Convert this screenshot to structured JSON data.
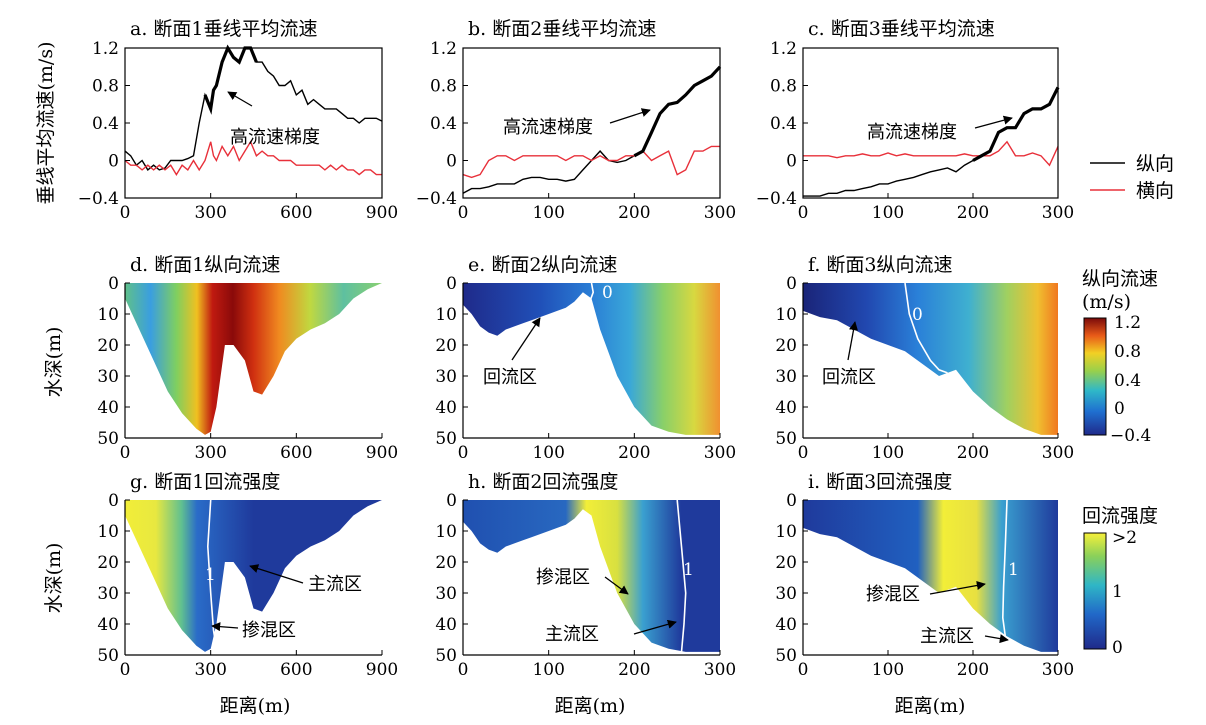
{
  "line_panels": [
    {
      "id": "a",
      "title": "a. 断面1垂线平均流速",
      "xticks": [
        0,
        300,
        600,
        900
      ],
      "annotation": "高流速梯度"
    },
    {
      "id": "b",
      "title": "b. 断面2垂线平均流速",
      "xticks": [
        0,
        100,
        200,
        300
      ],
      "annotation": "高流速梯度"
    },
    {
      "id": "c",
      "title": "c. 断面3垂线平均流速",
      "xticks": [
        0,
        100,
        200,
        300
      ],
      "annotation": "高流速梯度"
    }
  ],
  "yticks_line": [
    "1.2",
    "0.8",
    "0.4",
    "0",
    "−0.4"
  ],
  "ylabel_line": "垂线平均流速(m/s)",
  "legend": {
    "items": [
      {
        "label": "纵向",
        "color": "#000000"
      },
      {
        "label": "横向",
        "color": "#e8303a"
      }
    ]
  },
  "section_panels": [
    {
      "id": "d",
      "title": "d. 断面1纵向流速",
      "xticks": [
        0,
        300,
        600,
        900
      ],
      "annotations": []
    },
    {
      "id": "e",
      "title": "e. 断面2纵向流速",
      "xticks": [
        0,
        100,
        200,
        300
      ],
      "annotations": [
        "回流区"
      ],
      "contour_label": "0"
    },
    {
      "id": "f",
      "title": "f. 断面3纵向流速",
      "xticks": [
        0,
        100,
        200,
        300
      ],
      "annotations": [
        "回流区"
      ],
      "contour_label": "0"
    },
    {
      "id": "g",
      "title": "g. 断面1回流强度",
      "xticks": [
        0,
        300,
        600,
        900
      ],
      "annotations": [
        "主流区",
        "掺混区"
      ],
      "contour_label": "1"
    },
    {
      "id": "h",
      "title": "h. 断面2回流强度",
      "xticks": [
        0,
        100,
        200,
        300
      ],
      "annotations": [
        "掺混区",
        "主流区"
      ],
      "contour_label": "1"
    },
    {
      "id": "i",
      "title": "i. 断面3回流强度",
      "xticks": [
        0,
        100,
        200,
        300
      ],
      "annotations": [
        "掺混区",
        "主流区"
      ],
      "contour_label": "1"
    }
  ],
  "yticks_depth": [
    "0",
    "10",
    "20",
    "30",
    "40",
    "50"
  ],
  "ylabel_depth": "水深(m)",
  "xlabel": "距离(m)",
  "colorbar1": {
    "title_line1": "纵向流速",
    "title_line2": "(m/s)",
    "ticks": [
      "1.2",
      "0.8",
      "0.4",
      "0",
      "−0.4"
    ]
  },
  "colorbar2": {
    "title": "回流强度",
    "ticks": [
      ">2",
      "1",
      "0"
    ]
  },
  "chart_data": [
    {
      "type": "line",
      "panel": "a",
      "xlim": [
        0,
        900
      ],
      "ylim": [
        -0.4,
        1.2
      ],
      "series": [
        {
          "name": "纵向",
          "x": [
            0,
            20,
            40,
            60,
            80,
            100,
            120,
            140,
            160,
            180,
            200,
            220,
            240,
            260,
            280,
            300,
            310,
            320,
            340,
            360,
            380,
            400,
            420,
            440,
            460,
            480,
            500,
            520,
            540,
            560,
            580,
            600,
            620,
            640,
            660,
            680,
            700,
            720,
            740,
            760,
            780,
            800,
            820,
            840,
            860,
            880,
            900
          ],
          "values": [
            0.1,
            0.05,
            -0.05,
            0.0,
            -0.1,
            -0.05,
            -0.1,
            -0.08,
            0.0,
            0.0,
            0.0,
            0.02,
            0.05,
            0.4,
            0.7,
            0.55,
            0.75,
            0.8,
            1.05,
            1.2,
            1.1,
            1.05,
            1.2,
            1.2,
            1.05,
            1.05,
            0.95,
            0.9,
            0.8,
            0.8,
            0.85,
            0.7,
            0.75,
            0.6,
            0.65,
            0.6,
            0.55,
            0.55,
            0.55,
            0.5,
            0.45,
            0.45,
            0.4,
            0.45,
            0.45,
            0.45,
            0.42
          ]
        },
        {
          "name": "横向",
          "x": [
            0,
            20,
            40,
            60,
            80,
            100,
            120,
            140,
            160,
            180,
            200,
            220,
            240,
            260,
            280,
            300,
            310,
            320,
            340,
            360,
            380,
            400,
            420,
            440,
            460,
            480,
            500,
            520,
            540,
            560,
            580,
            600,
            620,
            640,
            660,
            680,
            700,
            720,
            740,
            760,
            780,
            800,
            820,
            840,
            860,
            880,
            900
          ],
          "values": [
            0.0,
            -0.05,
            -0.05,
            -0.1,
            -0.05,
            -0.1,
            -0.05,
            -0.1,
            -0.05,
            -0.15,
            -0.05,
            -0.1,
            0.0,
            -0.1,
            0.0,
            0.2,
            0.05,
            0.0,
            0.15,
            0.05,
            0.15,
            0.0,
            0.1,
            0.2,
            0.05,
            0.1,
            0.05,
            0.05,
            0.0,
            0.0,
            0.0,
            -0.05,
            -0.05,
            -0.05,
            -0.05,
            -0.05,
            -0.1,
            -0.05,
            -0.1,
            -0.05,
            -0.1,
            -0.1,
            -0.15,
            -0.1,
            -0.1,
            -0.15,
            -0.15
          ]
        }
      ]
    },
    {
      "type": "line",
      "panel": "b",
      "xlim": [
        0,
        300
      ],
      "ylim": [
        -0.4,
        1.2
      ],
      "series": [
        {
          "name": "纵向",
          "x": [
            0,
            10,
            20,
            30,
            40,
            50,
            60,
            70,
            80,
            90,
            100,
            110,
            120,
            130,
            140,
            150,
            160,
            170,
            180,
            190,
            200,
            210,
            220,
            230,
            240,
            250,
            260,
            270,
            280,
            290,
            300
          ],
          "values": [
            -0.35,
            -0.3,
            -0.3,
            -0.28,
            -0.25,
            -0.25,
            -0.25,
            -0.2,
            -0.18,
            -0.18,
            -0.2,
            -0.2,
            -0.22,
            -0.2,
            -0.1,
            0.0,
            0.1,
            0.0,
            -0.02,
            0.0,
            0.05,
            0.1,
            0.3,
            0.5,
            0.6,
            0.62,
            0.7,
            0.8,
            0.85,
            0.9,
            1.0
          ]
        },
        {
          "name": "横向",
          "x": [
            0,
            10,
            20,
            30,
            40,
            50,
            60,
            70,
            80,
            90,
            100,
            110,
            120,
            130,
            140,
            150,
            160,
            170,
            180,
            190,
            200,
            210,
            220,
            230,
            240,
            250,
            260,
            270,
            280,
            290,
            300
          ],
          "values": [
            -0.15,
            -0.18,
            -0.15,
            0.0,
            0.05,
            0.05,
            0.0,
            0.05,
            0.05,
            0.05,
            0.05,
            0.05,
            0.0,
            0.05,
            0.05,
            0.0,
            0.05,
            0.0,
            0.0,
            0.05,
            0.05,
            0.1,
            0.0,
            0.05,
            0.1,
            -0.15,
            -0.1,
            0.1,
            0.1,
            0.15,
            0.15
          ]
        }
      ]
    },
    {
      "type": "line",
      "panel": "c",
      "xlim": [
        0,
        300
      ],
      "ylim": [
        -0.4,
        1.2
      ],
      "series": [
        {
          "name": "纵向",
          "x": [
            0,
            10,
            20,
            30,
            40,
            50,
            60,
            70,
            80,
            90,
            100,
            110,
            120,
            130,
            140,
            150,
            160,
            170,
            180,
            190,
            200,
            210,
            220,
            230,
            240,
            250,
            260,
            270,
            280,
            290,
            300
          ],
          "values": [
            -0.38,
            -0.38,
            -0.38,
            -0.35,
            -0.35,
            -0.32,
            -0.32,
            -0.3,
            -0.28,
            -0.25,
            -0.25,
            -0.22,
            -0.2,
            -0.18,
            -0.15,
            -0.12,
            -0.1,
            -0.08,
            -0.12,
            -0.05,
            0.0,
            0.05,
            0.1,
            0.3,
            0.35,
            0.35,
            0.5,
            0.55,
            0.55,
            0.6,
            0.78
          ]
        },
        {
          "name": "横向",
          "x": [
            0,
            10,
            20,
            30,
            40,
            50,
            60,
            70,
            80,
            90,
            100,
            110,
            120,
            130,
            140,
            150,
            160,
            170,
            180,
            190,
            200,
            210,
            220,
            230,
            240,
            250,
            260,
            270,
            280,
            290,
            300
          ],
          "values": [
            0.05,
            0.05,
            0.05,
            0.05,
            0.03,
            0.05,
            0.05,
            0.07,
            0.05,
            0.05,
            0.08,
            0.05,
            0.07,
            0.05,
            0.05,
            0.05,
            0.05,
            0.05,
            0.05,
            0.07,
            0.05,
            0.05,
            0.05,
            0.1,
            0.2,
            0.05,
            0.05,
            0.08,
            0.05,
            -0.05,
            0.15
          ]
        }
      ]
    },
    {
      "type": "heatmap",
      "panel": "d",
      "xlim": [
        0,
        900
      ],
      "ylim": [
        50,
        0
      ],
      "bed": {
        "x": [
          0,
          50,
          100,
          150,
          200,
          250,
          280,
          300,
          320,
          350,
          380,
          420,
          450,
          480,
          520,
          560,
          600,
          650,
          700,
          750,
          800,
          850,
          900
        ],
        "depth": [
          5,
          15,
          25,
          35,
          42,
          47,
          49,
          48,
          40,
          20,
          20,
          25,
          35,
          36,
          30,
          22,
          18,
          15,
          13,
          10,
          5,
          2,
          0
        ]
      }
    },
    {
      "type": "heatmap",
      "panel": "e",
      "xlim": [
        0,
        300
      ],
      "ylim": [
        50,
        0
      ],
      "bed": {
        "x": [
          0,
          10,
          20,
          30,
          40,
          50,
          60,
          70,
          80,
          90,
          100,
          110,
          120,
          130,
          140,
          150,
          160,
          180,
          200,
          220,
          240,
          260,
          280,
          300
        ],
        "depth": [
          7,
          10,
          14,
          16,
          17,
          15,
          14,
          13,
          12,
          11,
          10,
          9,
          8,
          6,
          3,
          5,
          15,
          30,
          40,
          46,
          48,
          49,
          49,
          49
        ]
      }
    },
    {
      "type": "heatmap",
      "panel": "f",
      "xlim": [
        0,
        300
      ],
      "ylim": [
        50,
        0
      ],
      "bed": {
        "x": [
          0,
          20,
          40,
          60,
          80,
          100,
          120,
          140,
          160,
          180,
          200,
          220,
          240,
          260,
          280,
          300
        ],
        "depth": [
          9,
          11,
          12,
          15,
          18,
          20,
          22,
          26,
          30,
          28,
          35,
          40,
          44,
          47,
          49,
          49
        ]
      }
    },
    {
      "type": "heatmap",
      "panel": "g",
      "xlim": [
        0,
        900
      ],
      "ylim": [
        50,
        0
      ],
      "bed": {
        "x": [
          0,
          50,
          100,
          150,
          200,
          250,
          280,
          300,
          320,
          350,
          380,
          420,
          450,
          480,
          520,
          560,
          600,
          650,
          700,
          750,
          800,
          850,
          900
        ],
        "depth": [
          5,
          15,
          25,
          35,
          42,
          47,
          49,
          48,
          40,
          20,
          20,
          25,
          35,
          36,
          30,
          22,
          18,
          15,
          13,
          10,
          5,
          2,
          0
        ]
      }
    },
    {
      "type": "heatmap",
      "panel": "h",
      "xlim": [
        0,
        300
      ],
      "ylim": [
        50,
        0
      ],
      "bed": {
        "x": [
          0,
          10,
          20,
          30,
          40,
          50,
          60,
          70,
          80,
          90,
          100,
          110,
          120,
          130,
          140,
          150,
          160,
          180,
          200,
          220,
          240,
          260,
          280,
          300
        ],
        "depth": [
          7,
          10,
          14,
          16,
          17,
          15,
          14,
          13,
          12,
          11,
          10,
          9,
          8,
          6,
          3,
          5,
          15,
          30,
          40,
          46,
          48,
          49,
          49,
          49
        ]
      }
    },
    {
      "type": "heatmap",
      "panel": "i",
      "xlim": [
        0,
        300
      ],
      "ylim": [
        50,
        0
      ],
      "bed": {
        "x": [
          0,
          20,
          40,
          60,
          80,
          100,
          120,
          140,
          160,
          180,
          200,
          220,
          240,
          260,
          280,
          300
        ],
        "depth": [
          9,
          11,
          12,
          15,
          18,
          20,
          22,
          26,
          30,
          28,
          35,
          40,
          44,
          47,
          49,
          49
        ]
      }
    }
  ]
}
